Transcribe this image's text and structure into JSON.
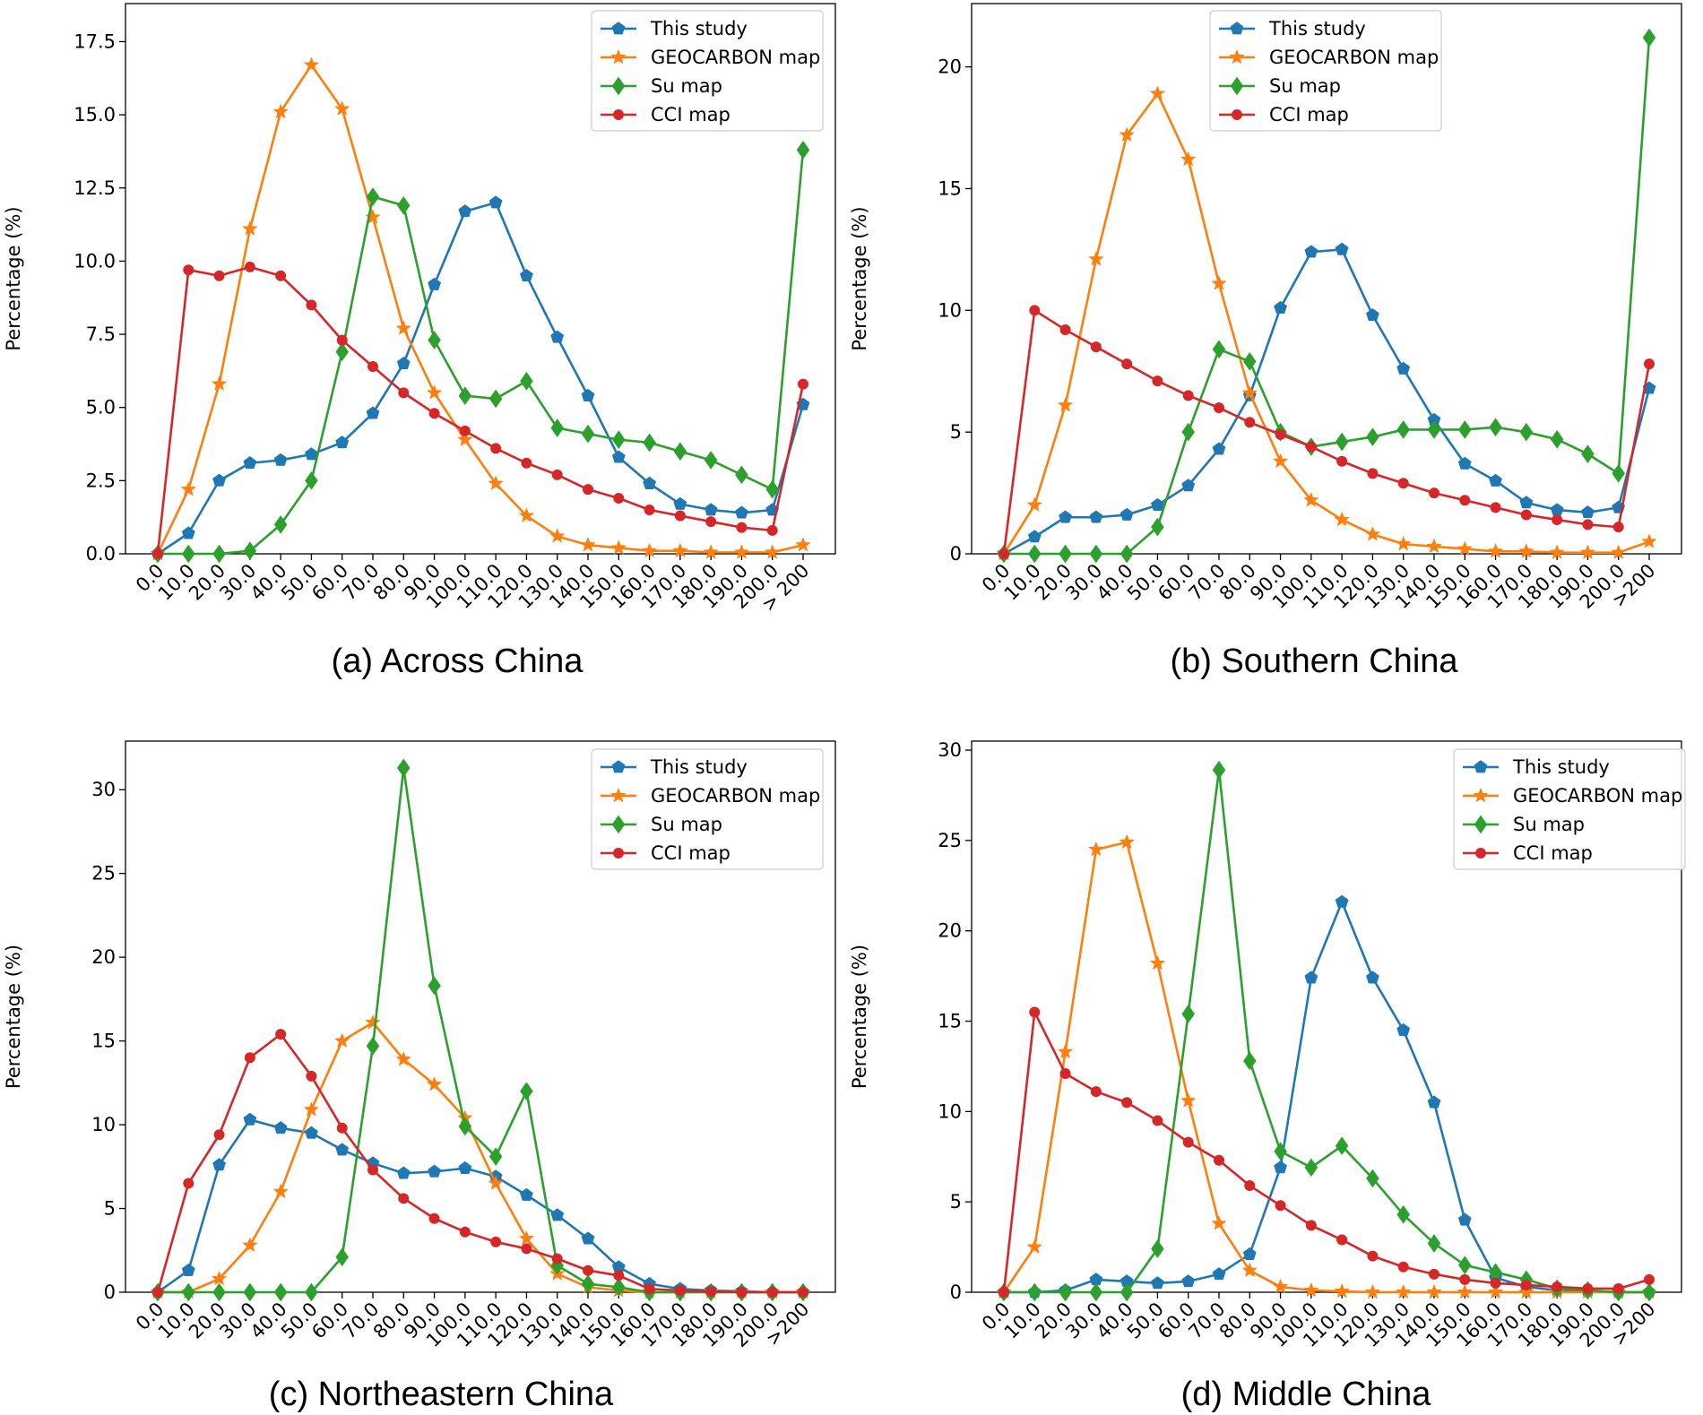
{
  "chart_data": [
    {
      "type": "line",
      "title": "(a) Across China",
      "xlabel": "",
      "ylabel": "Percentage (%)",
      "ylim": [
        0,
        18.8
      ],
      "yticks": [
        0.0,
        2.5,
        5.0,
        7.5,
        10.0,
        12.5,
        15.0,
        17.5
      ],
      "ytick_labels": [
        "0.0",
        "2.5",
        "5.0",
        "7.5",
        "10.0",
        "12.5",
        "15.0",
        "17.5"
      ],
      "legend_position": "top-right",
      "categories": [
        "0.0",
        "10.0",
        "20.0",
        "30.0",
        "40.0",
        "50.0",
        "60.0",
        "70.0",
        "80.0",
        "90.0",
        "100.0",
        "110.0",
        "120.0",
        "130.0",
        "140.0",
        "150.0",
        "160.0",
        "170.0",
        "180.0",
        "190.0",
        "200.0",
        "> 200"
      ],
      "series": [
        {
          "name": "This study",
          "color": "#1f77b4",
          "marker": "pentagon",
          "values": [
            0.0,
            0.7,
            2.5,
            3.1,
            3.2,
            3.4,
            3.8,
            4.8,
            6.5,
            9.2,
            11.7,
            12.0,
            9.5,
            7.4,
            5.4,
            3.3,
            2.4,
            1.7,
            1.5,
            1.4,
            1.5,
            5.1
          ]
        },
        {
          "name": "GEOCARBON map",
          "color": "#ff7f0e",
          "marker": "star",
          "values": [
            0.0,
            2.2,
            5.8,
            11.1,
            15.1,
            16.7,
            15.2,
            11.5,
            7.7,
            5.5,
            3.9,
            2.4,
            1.3,
            0.6,
            0.3,
            0.2,
            0.1,
            0.1,
            0.05,
            0.05,
            0.05,
            0.3
          ]
        },
        {
          "name": "Su map",
          "color": "#2ca02c",
          "marker": "diamond",
          "values": [
            0.0,
            0.0,
            0.0,
            0.1,
            1.0,
            2.5,
            6.9,
            12.2,
            11.9,
            7.3,
            5.4,
            5.3,
            5.9,
            4.3,
            4.1,
            3.9,
            3.8,
            3.5,
            3.2,
            2.7,
            2.2,
            13.8
          ]
        },
        {
          "name": "CCI map",
          "color": "#d62728",
          "marker": "circle",
          "values": [
            0.0,
            9.7,
            9.5,
            9.8,
            9.5,
            8.5,
            7.3,
            6.4,
            5.5,
            4.8,
            4.2,
            3.6,
            3.1,
            2.7,
            2.2,
            1.9,
            1.5,
            1.3,
            1.1,
            0.9,
            0.8,
            5.8
          ]
        }
      ]
    },
    {
      "type": "line",
      "title": "(b) Southern China",
      "xlabel": "",
      "ylabel": "Percentage (%)",
      "ylim": [
        0,
        22.6
      ],
      "yticks": [
        0,
        5,
        10,
        15,
        20
      ],
      "ytick_labels": [
        "0",
        "5",
        "10",
        "15",
        "20"
      ],
      "legend_position": "top-right",
      "categories": [
        "0.0",
        "10.0",
        "20.0",
        "30.0",
        "40.0",
        "50.0",
        "60.0",
        "70.0",
        "80.0",
        "90.0",
        "100.0",
        "110.0",
        "120.0",
        "130.0",
        "140.0",
        "150.0",
        "160.0",
        "170.0",
        "180.0",
        "190.0",
        "200.0",
        ">200"
      ],
      "series": [
        {
          "name": "This study",
          "color": "#1f77b4",
          "marker": "pentagon",
          "values": [
            0.0,
            0.7,
            1.5,
            1.5,
            1.6,
            2.0,
            2.8,
            4.3,
            6.5,
            10.1,
            12.4,
            12.5,
            9.8,
            7.6,
            5.5,
            3.7,
            3.0,
            2.1,
            1.8,
            1.7,
            1.9,
            6.8
          ]
        },
        {
          "name": "GEOCARBON map",
          "color": "#ff7f0e",
          "marker": "star",
          "values": [
            0.0,
            2.0,
            6.1,
            12.1,
            17.2,
            18.9,
            16.2,
            11.1,
            6.6,
            3.8,
            2.2,
            1.4,
            0.8,
            0.4,
            0.3,
            0.2,
            0.1,
            0.1,
            0.05,
            0.05,
            0.05,
            0.5
          ]
        },
        {
          "name": "Su map",
          "color": "#2ca02c",
          "marker": "diamond",
          "values": [
            0.0,
            0.0,
            0.0,
            0.0,
            0.0,
            1.1,
            5.0,
            8.4,
            7.9,
            5.0,
            4.4,
            4.6,
            4.8,
            5.1,
            5.1,
            5.1,
            5.2,
            5.0,
            4.7,
            4.1,
            3.3,
            21.2
          ]
        },
        {
          "name": "CCI map",
          "color": "#d62728",
          "marker": "circle",
          "values": [
            0.0,
            10.0,
            9.2,
            8.5,
            7.8,
            7.1,
            6.5,
            6.0,
            5.4,
            4.9,
            4.4,
            3.8,
            3.3,
            2.9,
            2.5,
            2.2,
            1.9,
            1.6,
            1.4,
            1.2,
            1.1,
            7.8
          ]
        }
      ]
    },
    {
      "type": "line",
      "title": "(c) Northeastern China",
      "xlabel": "",
      "ylabel": "Percentage (%)",
      "ylim": [
        0,
        32.9
      ],
      "yticks": [
        0,
        5,
        10,
        15,
        20,
        25,
        30
      ],
      "ytick_labels": [
        "0",
        "5",
        "10",
        "15",
        "20",
        "25",
        "30"
      ],
      "legend_position": "top-right",
      "categories": [
        "0.0",
        "10.0",
        "20.0",
        "30.0",
        "40.0",
        "50.0",
        "60.0",
        "70.0",
        "80.0",
        "90.0",
        "100.0",
        "110.0",
        "120.0",
        "130.0",
        "140.0",
        "150.0",
        "160.0",
        "170.0",
        "180.0",
        "190.0",
        "200.0",
        ">200"
      ],
      "series": [
        {
          "name": "This study",
          "color": "#1f77b4",
          "marker": "pentagon",
          "values": [
            0.0,
            1.3,
            7.6,
            10.3,
            9.8,
            9.5,
            8.5,
            7.7,
            7.1,
            7.2,
            7.4,
            6.9,
            5.8,
            4.6,
            3.2,
            1.5,
            0.5,
            0.2,
            0.1,
            0.05,
            0.0,
            0.0
          ]
        },
        {
          "name": "GEOCARBON map",
          "color": "#ff7f0e",
          "marker": "star",
          "values": [
            0.0,
            0.0,
            0.8,
            2.8,
            6.0,
            10.9,
            15.0,
            16.1,
            13.9,
            12.4,
            10.4,
            6.5,
            3.2,
            1.1,
            0.3,
            0.1,
            0.0,
            0.0,
            0.0,
            0.0,
            0.0,
            0.0
          ]
        },
        {
          "name": "Su map",
          "color": "#2ca02c",
          "marker": "diamond",
          "values": [
            0.0,
            0.0,
            0.0,
            0.0,
            0.0,
            0.0,
            2.1,
            14.7,
            31.3,
            18.3,
            9.9,
            8.1,
            12.0,
            1.6,
            0.5,
            0.3,
            0.0,
            0.0,
            0.0,
            0.0,
            0.0,
            0.0
          ]
        },
        {
          "name": "CCI map",
          "color": "#d62728",
          "marker": "circle",
          "values": [
            0.0,
            6.5,
            9.4,
            14.0,
            15.4,
            12.9,
            9.8,
            7.3,
            5.6,
            4.4,
            3.6,
            3.0,
            2.6,
            2.0,
            1.3,
            1.0,
            0.2,
            0.1,
            0.05,
            0.0,
            0.0,
            0.0
          ]
        }
      ]
    },
    {
      "type": "line",
      "title": "(d) Middle China",
      "xlabel": "",
      "ylabel": "Percentage (%)",
      "ylim": [
        0,
        30.5
      ],
      "yticks": [
        0,
        5,
        10,
        15,
        20,
        25,
        30
      ],
      "ytick_labels": [
        "0",
        "5",
        "10",
        "15",
        "20",
        "25",
        "30"
      ],
      "legend_position": "top-right",
      "categories": [
        "0.0",
        "10.0",
        "20.0",
        "30.0",
        "40.0",
        "50.0",
        "60.0",
        "70.0",
        "80.0",
        "90.0",
        "100.0",
        "110.0",
        "120.0",
        "130.0",
        "140.0",
        "150.0",
        "160.0",
        "170.0",
        "180.0",
        "190.0",
        "200.0",
        ">200"
      ],
      "series": [
        {
          "name": "This study",
          "color": "#1f77b4",
          "marker": "pentagon",
          "values": [
            0.0,
            0.0,
            0.1,
            0.7,
            0.6,
            0.5,
            0.6,
            1.0,
            2.1,
            6.9,
            17.4,
            21.6,
            17.4,
            14.5,
            10.5,
            4.0,
            0.8,
            0.3,
            0.1,
            0.05,
            0.0,
            0.0
          ]
        },
        {
          "name": "GEOCARBON map",
          "color": "#ff7f0e",
          "marker": "star",
          "values": [
            0.0,
            2.5,
            13.3,
            24.5,
            24.9,
            18.2,
            10.6,
            3.8,
            1.2,
            0.3,
            0.1,
            0.05,
            0.0,
            0.0,
            0.0,
            0.0,
            0.0,
            0.0,
            0.0,
            0.0,
            0.0,
            0.0
          ]
        },
        {
          "name": "Su map",
          "color": "#2ca02c",
          "marker": "diamond",
          "values": [
            0.0,
            0.0,
            0.0,
            0.0,
            0.0,
            2.4,
            15.4,
            28.9,
            12.8,
            7.8,
            6.9,
            8.1,
            6.3,
            4.3,
            2.7,
            1.5,
            1.1,
            0.7,
            0.2,
            0.1,
            0.0,
            0.0
          ]
        },
        {
          "name": "CCI map",
          "color": "#d62728",
          "marker": "circle",
          "values": [
            0.0,
            15.5,
            12.1,
            11.1,
            10.5,
            9.5,
            8.3,
            7.3,
            5.9,
            4.8,
            3.7,
            2.9,
            2.0,
            1.4,
            1.0,
            0.7,
            0.5,
            0.4,
            0.3,
            0.2,
            0.2,
            0.7
          ]
        }
      ]
    }
  ]
}
